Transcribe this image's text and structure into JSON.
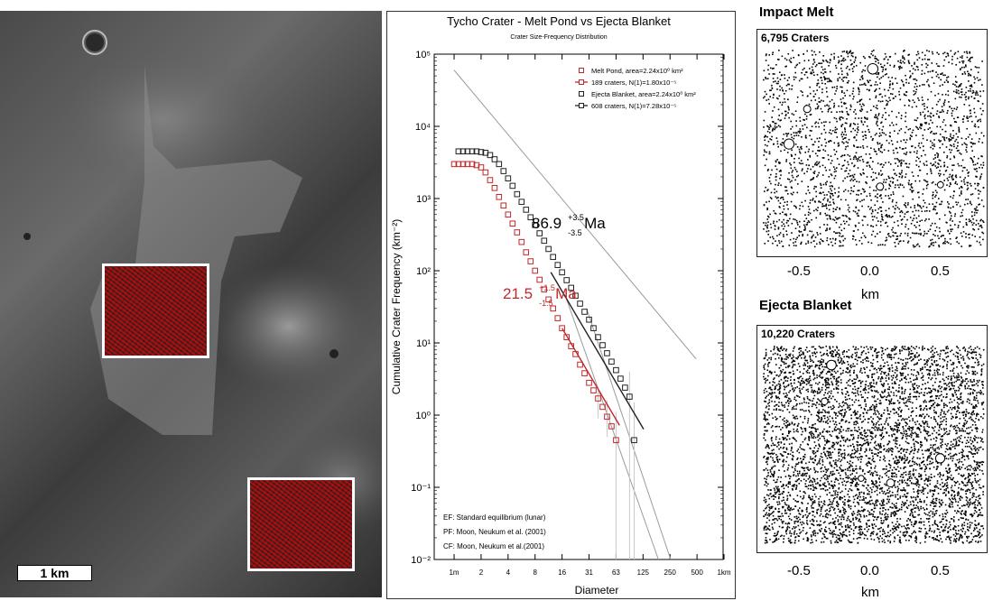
{
  "left_panel": {
    "scale_label": "1 km"
  },
  "chart_data": {
    "type": "scatter",
    "title": "Tycho Crater - Melt Pond vs Ejecta Blanket",
    "subtitle": "Crater Size-Frequency Distribution",
    "xlabel": "Diameter",
    "ylabel": "Cumulative Crater Frequency (km⁻²)",
    "x_scale": "log",
    "y_scale": "log",
    "xlim": [
      0.6,
      1000
    ],
    "ylim": [
      0.01,
      100000
    ],
    "x_ticks": [
      "1m",
      "2",
      "4",
      "8",
      "16",
      "31",
      "63",
      "125",
      "250",
      "500",
      "1km"
    ],
    "y_ticks": [
      "10⁻²",
      "10⁻¹",
      "10⁰",
      "10¹",
      "10²",
      "10³",
      "10⁴",
      "10⁵"
    ],
    "legend": [
      {
        "label": "Melt Pond, area=2.24x10⁰ km²",
        "color": "#c0282b",
        "marker": "square"
      },
      {
        "label": "189 craters, N(1)=1.80x10⁻⁵",
        "color": "#c0282b",
        "marker": "line-square"
      },
      {
        "label": "Ejecta Blanket, area=2.24x10⁰ km²",
        "color": "#222222",
        "marker": "square"
      },
      {
        "label": "608 craters, N(1)=7.28x10⁻⁵",
        "color": "#222222",
        "marker": "line-square"
      }
    ],
    "series": [
      {
        "name": "Melt Pond",
        "color": "#c0282b",
        "x": [
          1.0,
          1.12,
          1.26,
          1.41,
          1.59,
          1.78,
          2.0,
          2.24,
          2.52,
          2.83,
          3.17,
          3.56,
          4.0,
          4.49,
          5.04,
          5.66,
          6.35,
          7.13,
          8.0,
          8.98,
          10.1,
          11.3,
          12.7,
          14.3,
          16.0,
          18.0,
          20.2,
          22.6,
          25.4,
          28.5,
          32.0,
          35.9,
          40.3,
          45.3,
          50.8,
          57.0,
          64.0
        ],
        "y": [
          3000,
          3000,
          3000,
          3000,
          3000,
          2900,
          2700,
          2300,
          1800,
          1400,
          1050,
          800,
          600,
          450,
          340,
          250,
          180,
          135,
          100,
          75,
          55,
          40,
          30,
          22,
          16,
          12,
          9,
          7,
          5,
          3.8,
          2.8,
          2.2,
          1.7,
          1.3,
          0.95,
          0.7,
          0.45
        ]
      },
      {
        "name": "Ejecta Blanket",
        "color": "#222222",
        "x": [
          1.12,
          1.26,
          1.41,
          1.59,
          1.78,
          2.0,
          2.24,
          2.52,
          2.83,
          3.17,
          3.56,
          4.0,
          4.49,
          5.04,
          5.66,
          6.35,
          7.13,
          8.0,
          8.98,
          10.1,
          11.3,
          12.7,
          14.3,
          16.0,
          18.0,
          20.2,
          22.6,
          25.4,
          28.5,
          32.0,
          35.9,
          40.3,
          45.3,
          50.8,
          57.0,
          64.0,
          71.8,
          80.6,
          90.5,
          102
        ],
        "y": [
          4500,
          4500,
          4500,
          4500,
          4500,
          4400,
          4300,
          4000,
          3500,
          3000,
          2400,
          1900,
          1500,
          1150,
          900,
          700,
          550,
          430,
          330,
          260,
          200,
          155,
          120,
          95,
          74,
          58,
          45,
          35,
          27,
          21,
          16,
          12,
          9.3,
          7.2,
          5.5,
          4.2,
          3.2,
          2.4,
          1.8,
          0.45
        ]
      }
    ],
    "fits": [
      {
        "series": "Melt Pond",
        "x_range": [
          16,
          70
        ]
      },
      {
        "series": "Ejecta Blanket",
        "x_range": [
          12,
          130
        ]
      }
    ],
    "annotations": [
      {
        "text": "86.9",
        "sup": "+3.5",
        "sub": "-3.5",
        "unit": "Ma",
        "color": "#000000"
      },
      {
        "text": "21.5",
        "sup": "+1.5",
        "sub": "-1.5",
        "unit": "Ma",
        "color": "#c0282b"
      }
    ],
    "footnotes": [
      "EF: Standard equilibrium (lunar)",
      "PF: Moon, Neukum et al. (2001)",
      "CF: Moon, Neukum et al.(2001)"
    ]
  },
  "maps": [
    {
      "title": "Impact Melt",
      "count": "6,795 Craters",
      "xticks": [
        "-0.5",
        "0.0",
        "0.5"
      ],
      "xlabel": "km"
    },
    {
      "title": "Ejecta Blanket",
      "count": "10,220 Craters",
      "xticks": [
        "-0.5",
        "0.0",
        "0.5"
      ],
      "xlabel": "km"
    }
  ]
}
